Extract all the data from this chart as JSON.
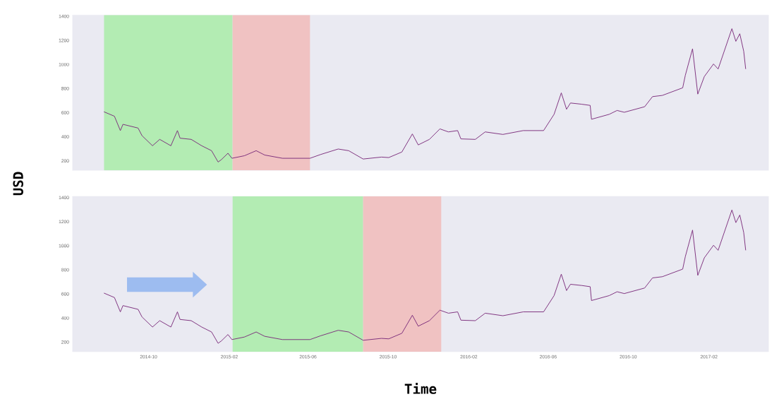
{
  "chart_data": [
    {
      "type": "line",
      "ylabel": "USD",
      "tick_labels": "y",
      "xlim": [
        "2014-06-07",
        "2017-05-03"
      ],
      "ylim": [
        120,
        1410
      ],
      "yticks": [
        200,
        400,
        600,
        800,
        1000,
        1200,
        1400
      ],
      "x": [
        "2014-07-25",
        "2014-08-10",
        "2014-08-19",
        "2014-08-23",
        "2014-09-15",
        "2014-09-21",
        "2014-10-07",
        "2014-10-18",
        "2014-11-04",
        "2014-11-14",
        "2014-11-18",
        "2014-12-05",
        "2014-12-21",
        "2015-01-05",
        "2015-01-15",
        "2015-01-20",
        "2015-01-30",
        "2015-02-05",
        "2015-02-24",
        "2015-03-14",
        "2015-03-27",
        "2015-04-23",
        "2015-06-04",
        "2015-06-20",
        "2015-07-17",
        "2015-08-02",
        "2015-08-24",
        "2015-09-21",
        "2015-10-02",
        "2015-10-22",
        "2015-11-07",
        "2015-11-16",
        "2015-12-03",
        "2015-12-19",
        "2016-01-01",
        "2016-01-15",
        "2016-01-20",
        "2016-02-11",
        "2016-02-26",
        "2016-03-24",
        "2016-04-24",
        "2016-05-25",
        "2016-06-10",
        "2016-06-21",
        "2016-06-29",
        "2016-07-05",
        "2016-07-22",
        "2016-08-04",
        "2016-08-06",
        "2016-09-02",
        "2016-09-14",
        "2016-09-25",
        "2016-10-26",
        "2016-11-07",
        "2016-11-22",
        "2016-12-23",
        "2016-12-27",
        "2017-01-07",
        "2017-01-15",
        "2017-01-25",
        "2017-02-08",
        "2017-02-15",
        "2017-03-08",
        "2017-03-14",
        "2017-03-20",
        "2017-03-26",
        "2017-03-29"
      ],
      "series": [
        {
          "color": "#7a2a7a",
          "values": [
            607,
            570,
            451,
            503,
            472,
            409,
            325,
            378,
            325,
            451,
            388,
            378,
            325,
            284,
            190,
            210,
            263,
            221,
            242,
            284,
            248,
            221,
            221,
            252,
            298,
            284,
            215,
            231,
            227,
            273,
            423,
            332,
            378,
            465,
            440,
            451,
            382,
            378,
            440,
            419,
            451,
            451,
            586,
            764,
            628,
            680,
            670,
            660,
            545,
            586,
            618,
            603,
            649,
            733,
            743,
            806,
            910,
            1130,
            754,
            900,
            1004,
            962,
            1297,
            1192,
            1255,
            1109,
            962
          ]
        }
      ],
      "bands": [
        {
          "axis": "x",
          "from": "2014-07-25",
          "to": "2015-02-06",
          "color": "#b3ecb3"
        },
        {
          "axis": "x",
          "from": "2015-02-06",
          "to": "2015-06-04",
          "color": "#f0c2c2"
        }
      ]
    },
    {
      "type": "line",
      "xlabel": "Time",
      "xlim": [
        "2014-06-07",
        "2017-05-03"
      ],
      "ylim": [
        120,
        1410
      ],
      "yticks": [
        200,
        400,
        600,
        800,
        1000,
        1200,
        1400
      ],
      "xticks": [
        {
          "value": "2014-10",
          "label": "2014-10"
        },
        {
          "value": "2015-02",
          "label": "2015-02"
        },
        {
          "value": "2015-06",
          "label": "2015-06"
        },
        {
          "value": "2015-10",
          "label": "2015-10"
        },
        {
          "value": "2016-02",
          "label": "2016-02"
        },
        {
          "value": "2016-06",
          "label": "2016-06"
        },
        {
          "value": "2016-10",
          "label": "2016-10"
        },
        {
          "value": "2017-02",
          "label": "2017-02"
        }
      ],
      "x": [
        "2014-07-25",
        "2014-08-10",
        "2014-08-19",
        "2014-08-23",
        "2014-09-15",
        "2014-09-21",
        "2014-10-07",
        "2014-10-18",
        "2014-11-04",
        "2014-11-14",
        "2014-11-18",
        "2014-12-05",
        "2014-12-21",
        "2015-01-05",
        "2015-01-15",
        "2015-01-20",
        "2015-01-30",
        "2015-02-05",
        "2015-02-24",
        "2015-03-14",
        "2015-03-27",
        "2015-04-23",
        "2015-06-04",
        "2015-06-20",
        "2015-07-17",
        "2015-08-02",
        "2015-08-24",
        "2015-09-21",
        "2015-10-02",
        "2015-10-22",
        "2015-11-07",
        "2015-11-16",
        "2015-12-03",
        "2015-12-19",
        "2016-01-01",
        "2016-01-15",
        "2016-01-20",
        "2016-02-11",
        "2016-02-26",
        "2016-03-24",
        "2016-04-24",
        "2016-05-25",
        "2016-06-10",
        "2016-06-21",
        "2016-06-29",
        "2016-07-05",
        "2016-07-22",
        "2016-08-04",
        "2016-08-06",
        "2016-09-02",
        "2016-09-14",
        "2016-09-25",
        "2016-10-26",
        "2016-11-07",
        "2016-11-22",
        "2016-12-23",
        "2016-12-27",
        "2017-01-07",
        "2017-01-15",
        "2017-01-25",
        "2017-02-08",
        "2017-02-15",
        "2017-03-08",
        "2017-03-14",
        "2017-03-20",
        "2017-03-26",
        "2017-03-29"
      ],
      "series": [
        {
          "color": "#7a2a7a",
          "values": [
            607,
            570,
            451,
            503,
            472,
            409,
            325,
            378,
            325,
            451,
            388,
            378,
            325,
            284,
            190,
            210,
            263,
            221,
            242,
            284,
            248,
            221,
            221,
            252,
            298,
            284,
            215,
            231,
            227,
            273,
            423,
            332,
            378,
            465,
            440,
            451,
            382,
            378,
            440,
            419,
            451,
            451,
            586,
            764,
            628,
            680,
            670,
            660,
            545,
            586,
            618,
            603,
            649,
            733,
            743,
            806,
            910,
            1130,
            754,
            900,
            1004,
            962,
            1297,
            1192,
            1255,
            1109,
            962
          ]
        }
      ],
      "bands": [
        {
          "axis": "x",
          "from": "2015-02-06",
          "to": "2015-08-24",
          "color": "#b3ecb3"
        },
        {
          "axis": "x",
          "from": "2015-08-24",
          "to": "2015-12-21",
          "color": "#f0c2c2"
        }
      ]
    }
  ]
}
